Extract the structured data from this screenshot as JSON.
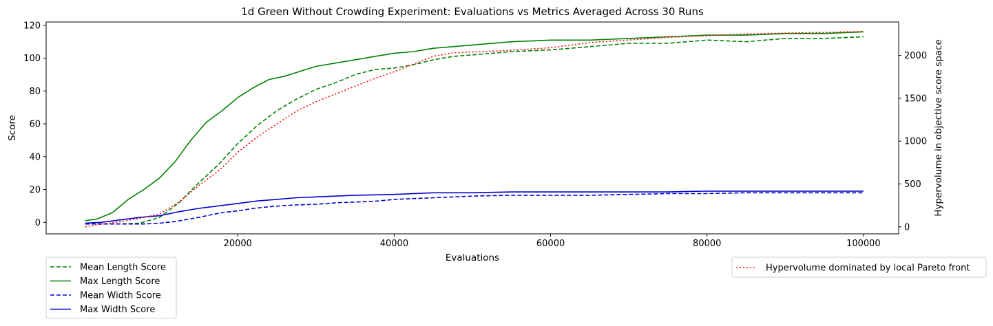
{
  "chart_data": {
    "type": "line",
    "title": "1d Green Without Crowding Experiment: Evaluations vs Metrics Averaged Across 30 Runs",
    "xlabel": "Evaluations",
    "ylabel": "Score",
    "y2label": "Hypervolume in objective score space",
    "xlim": [
      -4500,
      104500
    ],
    "ylim": [
      -7,
      122
    ],
    "y2lim": [
      -82,
      2390
    ],
    "x_ticks": [
      20000,
      40000,
      60000,
      80000,
      100000
    ],
    "x_tick_labels": [
      "20000",
      "40000",
      "60000",
      "80000",
      "100000"
    ],
    "y_ticks": [
      0,
      20,
      40,
      60,
      80,
      100,
      120
    ],
    "y_tick_labels": [
      "0",
      "20",
      "40",
      "60",
      "80",
      "100",
      "120"
    ],
    "y2_ticks": [
      0,
      500,
      1000,
      1500,
      2000
    ],
    "y2_tick_labels": [
      "0",
      "500",
      "1000",
      "1500",
      "2000"
    ],
    "grid": false,
    "legend_left_position": "below-left",
    "legend_right_position": "below-right",
    "series": [
      {
        "name": "Mean Length Score",
        "axis": "left",
        "color": "#008000",
        "style": "dashed",
        "x": [
          500,
          2500,
          5000,
          7500,
          10000,
          12500,
          15000,
          17500,
          20000,
          22500,
          25000,
          27500,
          30000,
          32500,
          35000,
          37500,
          40000,
          42500,
          45000,
          47500,
          50000,
          55000,
          60000,
          65000,
          70000,
          75000,
          80000,
          85000,
          90000,
          95000,
          100000
        ],
        "y": [
          -1,
          -1,
          -1,
          -0.5,
          3,
          12,
          24,
          35,
          48,
          59,
          68,
          75,
          81,
          85,
          90,
          93,
          94,
          96,
          99,
          101,
          102,
          104,
          105,
          107,
          109,
          109,
          111,
          110,
          112,
          112,
          113
        ]
      },
      {
        "name": "Max Length Score",
        "axis": "left",
        "color": "#008000",
        "style": "solid",
        "x": [
          500,
          2000,
          4000,
          6000,
          8000,
          10000,
          12000,
          14000,
          16000,
          18000,
          20000,
          22000,
          24000,
          26000,
          28000,
          30000,
          32500,
          35000,
          37500,
          40000,
          42500,
          45000,
          47500,
          50000,
          55000,
          60000,
          65000,
          70000,
          75000,
          80000,
          85000,
          90000,
          95000,
          100000
        ],
        "y": [
          1,
          2,
          6,
          14,
          20,
          27,
          37,
          50,
          61,
          68,
          76,
          82,
          87,
          89,
          92,
          95,
          97,
          99,
          101,
          103,
          104,
          106,
          107,
          108,
          110,
          111,
          111,
          112,
          113,
          114,
          114,
          115,
          115,
          116
        ]
      },
      {
        "name": "Mean Width Score",
        "axis": "left",
        "color": "#0000cc",
        "style": "dashed",
        "x": [
          500,
          5000,
          8000,
          10000,
          12000,
          15000,
          18000,
          20000,
          22000,
          24000,
          27000,
          30000,
          33000,
          36000,
          38000,
          40000,
          45000,
          50000,
          55000,
          60000,
          65000,
          70000,
          75000,
          80000,
          85000,
          90000,
          95000,
          100000
        ],
        "y": [
          -1,
          -1,
          -1,
          -0.5,
          0.5,
          3,
          6,
          7,
          8.5,
          9.5,
          10.5,
          11,
          12,
          12.5,
          13,
          14,
          15,
          16,
          16.5,
          16.5,
          16.5,
          17,
          17.5,
          17.5,
          18,
          18,
          18,
          18
        ]
      },
      {
        "name": "Max Width Score",
        "axis": "left",
        "color": "#0000cc",
        "style": "solid",
        "x": [
          500,
          2500,
          5000,
          7500,
          10000,
          12500,
          15000,
          17500,
          20000,
          22500,
          25000,
          27500,
          30000,
          35000,
          40000,
          45000,
          50000,
          55000,
          60000,
          65000,
          70000,
          75000,
          80000,
          85000,
          90000,
          95000,
          100000
        ],
        "y": [
          -0.5,
          0,
          1.5,
          3,
          4,
          6.5,
          8.5,
          10,
          11.5,
          13,
          14,
          15,
          15.5,
          16.5,
          17,
          18,
          18,
          18.5,
          18.5,
          18.5,
          18.5,
          18.5,
          19,
          19,
          19,
          19,
          19
        ]
      },
      {
        "name": "Hypervolume dominated by local Pareto front",
        "axis": "right",
        "color": "#ff0000",
        "style": "dotted",
        "x": [
          500,
          2500,
          5000,
          7500,
          10000,
          12500,
          15000,
          17500,
          20000,
          22500,
          25000,
          27500,
          30000,
          32500,
          35000,
          37500,
          40000,
          42500,
          45000,
          47500,
          50000,
          55000,
          60000,
          65000,
          70000,
          75000,
          80000,
          85000,
          90000,
          95000,
          100000
        ],
        "y": [
          0,
          30,
          60,
          100,
          150,
          290,
          480,
          650,
          870,
          1050,
          1200,
          1350,
          1460,
          1550,
          1640,
          1730,
          1810,
          1900,
          1990,
          2030,
          2040,
          2060,
          2090,
          2150,
          2180,
          2210,
          2230,
          2250,
          2260,
          2270,
          2280
        ]
      }
    ]
  }
}
